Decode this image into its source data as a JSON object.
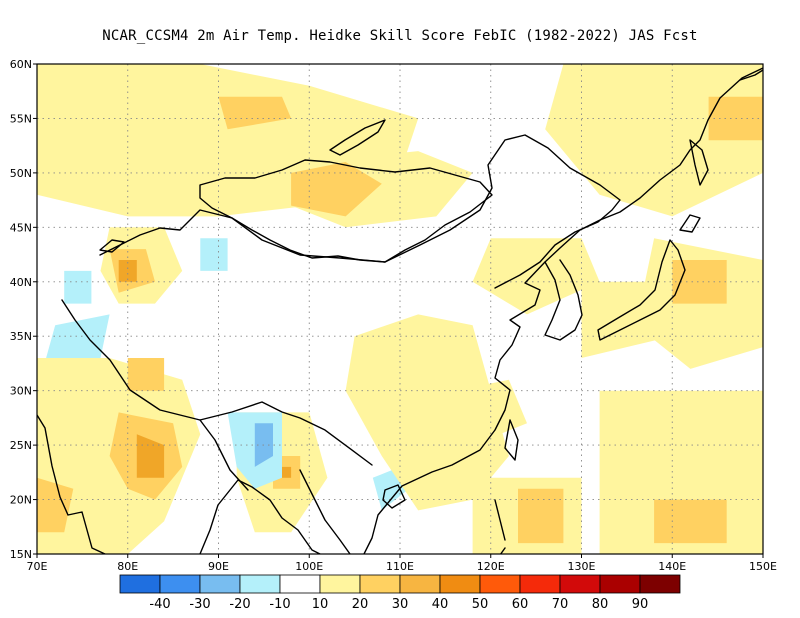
{
  "title": "NCAR_CCSM4  2m Air Temp. Heidke Skill Score FebIC (1982-2022) JAS Fcst",
  "map": {
    "lon_range": [
      70,
      150
    ],
    "lat_range": [
      15,
      60
    ],
    "x_ticks": [
      "70E",
      "80E",
      "90E",
      "100E",
      "110E",
      "120E",
      "130E",
      "140E",
      "150E"
    ],
    "y_ticks": [
      "15N",
      "20N",
      "25N",
      "30N",
      "35N",
      "40N",
      "45N",
      "50N",
      "55N",
      "60N"
    ],
    "grid_lines": "dotted",
    "colors": {
      "hot": "#f0a628",
      "warm": "#ffd161",
      "mild": "#fff59e",
      "cool": "#b4f0fa",
      "cold": "#78bdf0",
      "coast": "#000000",
      "grid": "#888888"
    }
  },
  "colorbar": {
    "colors": [
      "#1f6fe0",
      "#3d8ff0",
      "#78bdf0",
      "#b4f0fa",
      "#ffffff",
      "#fff59e",
      "#ffd161",
      "#f7b541",
      "#f08c12",
      "#ff5a0a",
      "#f52a0a",
      "#d20a0a",
      "#aa0000",
      "#7d0000"
    ],
    "labels": [
      "-40",
      "-30",
      "-20",
      "-10",
      "10",
      "20",
      "30",
      "40",
      "50",
      "60",
      "70",
      "80",
      "90"
    ]
  }
}
